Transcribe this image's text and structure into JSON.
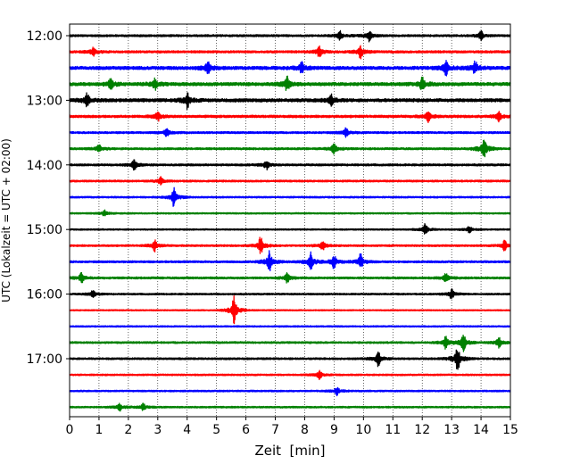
{
  "chart_data": {
    "type": "line",
    "title": "",
    "xlabel": "Zeit  [min]",
    "ylabel": "UTC (Lokalzeit = UTC + 02:00)",
    "xlim": [
      0,
      15
    ],
    "x_ticks": [
      "0",
      "1",
      "2",
      "3",
      "4",
      "5",
      "6",
      "7",
      "8",
      "9",
      "10",
      "11",
      "12",
      "13",
      "14",
      "15"
    ],
    "y_ticks": [
      "12:00",
      "13:00",
      "14:00",
      "15:00",
      "16:00",
      "17:00"
    ],
    "grid": "vertical dotted",
    "trace_interval_minutes": 15,
    "trace_colors_cycle": [
      "#000000",
      "#ff0000",
      "#0000ff",
      "#008000"
    ],
    "traces": [
      {
        "start": "12:00",
        "color": "#000000",
        "noise": 1.0,
        "events": [
          {
            "t": 9.2,
            "amp": 1.3
          },
          {
            "t": 10.2,
            "amp": 1.6
          },
          {
            "t": 14.0,
            "amp": 1.2
          }
        ]
      },
      {
        "start": "12:15",
        "color": "#ff0000",
        "noise": 1.1,
        "events": [
          {
            "t": 0.8,
            "amp": 1.4
          },
          {
            "t": 8.5,
            "amp": 1.6
          },
          {
            "t": 9.9,
            "amp": 1.8
          }
        ]
      },
      {
        "start": "12:30",
        "color": "#0000ff",
        "noise": 1.6,
        "events": [
          {
            "t": 4.7,
            "amp": 1.8
          },
          {
            "t": 7.9,
            "amp": 1.6
          },
          {
            "t": 12.8,
            "amp": 2.2
          },
          {
            "t": 13.8,
            "amp": 2.0
          }
        ]
      },
      {
        "start": "12:45",
        "color": "#008000",
        "noise": 1.6,
        "events": [
          {
            "t": 1.4,
            "amp": 1.6
          },
          {
            "t": 2.9,
            "amp": 1.6
          },
          {
            "t": 7.4,
            "amp": 2.0
          },
          {
            "t": 12.0,
            "amp": 2.0
          }
        ]
      },
      {
        "start": "13:00",
        "color": "#000000",
        "noise": 1.6,
        "events": [
          {
            "t": 0.6,
            "amp": 2.0
          },
          {
            "t": 4.0,
            "amp": 2.3
          },
          {
            "t": 8.9,
            "amp": 1.5
          }
        ]
      },
      {
        "start": "13:15",
        "color": "#ff0000",
        "noise": 1.2,
        "events": [
          {
            "t": 3.0,
            "amp": 1.4
          },
          {
            "t": 12.2,
            "amp": 1.6
          },
          {
            "t": 14.6,
            "amp": 1.4
          }
        ]
      },
      {
        "start": "13:30",
        "color": "#0000ff",
        "noise": 1.0,
        "events": [
          {
            "t": 3.3,
            "amp": 1.3
          },
          {
            "t": 9.4,
            "amp": 1.3
          }
        ]
      },
      {
        "start": "13:45",
        "color": "#008000",
        "noise": 1.0,
        "events": [
          {
            "t": 1.0,
            "amp": 1.3
          },
          {
            "t": 9.0,
            "amp": 1.8
          },
          {
            "t": 14.1,
            "amp": 3.8
          }
        ]
      },
      {
        "start": "14:00",
        "color": "#000000",
        "noise": 1.0,
        "events": [
          {
            "t": 2.2,
            "amp": 1.6
          },
          {
            "t": 6.7,
            "amp": 1.3
          }
        ]
      },
      {
        "start": "14:15",
        "color": "#ff0000",
        "noise": 0.9,
        "events": [
          {
            "t": 3.1,
            "amp": 1.1
          }
        ]
      },
      {
        "start": "14:30",
        "color": "#0000ff",
        "noise": 0.8,
        "events": [
          {
            "t": 3.55,
            "amp": 2.9
          }
        ]
      },
      {
        "start": "14:45",
        "color": "#008000",
        "noise": 0.7,
        "events": [
          {
            "t": 1.2,
            "amp": 1.0
          }
        ]
      },
      {
        "start": "15:00",
        "color": "#000000",
        "noise": 0.7,
        "events": [
          {
            "t": 12.1,
            "amp": 1.6
          },
          {
            "t": 13.6,
            "amp": 1.0
          }
        ]
      },
      {
        "start": "15:15",
        "color": "#ff0000",
        "noise": 0.9,
        "events": [
          {
            "t": 2.9,
            "amp": 1.6
          },
          {
            "t": 6.5,
            "amp": 2.6
          },
          {
            "t": 8.6,
            "amp": 1.5
          },
          {
            "t": 14.8,
            "amp": 1.6
          }
        ]
      },
      {
        "start": "15:30",
        "color": "#0000ff",
        "noise": 1.0,
        "events": [
          {
            "t": 6.8,
            "amp": 3.2
          },
          {
            "t": 8.2,
            "amp": 3.0
          },
          {
            "t": 9.0,
            "amp": 2.2
          },
          {
            "t": 9.9,
            "amp": 2.4
          }
        ]
      },
      {
        "start": "15:45",
        "color": "#008000",
        "noise": 1.0,
        "events": [
          {
            "t": 0.4,
            "amp": 1.6
          },
          {
            "t": 7.4,
            "amp": 1.4
          },
          {
            "t": 12.8,
            "amp": 1.3
          }
        ]
      },
      {
        "start": "16:00",
        "color": "#000000",
        "noise": 0.8,
        "events": [
          {
            "t": 0.8,
            "amp": 1.2
          },
          {
            "t": 13.0,
            "amp": 1.6
          }
        ]
      },
      {
        "start": "16:15",
        "color": "#ff0000",
        "noise": 0.6,
        "events": [
          {
            "t": 5.6,
            "amp": 4.4
          }
        ]
      },
      {
        "start": "16:30",
        "color": "#0000ff",
        "noise": 0.7,
        "events": []
      },
      {
        "start": "16:45",
        "color": "#008000",
        "noise": 0.9,
        "events": [
          {
            "t": 12.8,
            "amp": 2.0
          },
          {
            "t": 13.4,
            "amp": 2.6
          },
          {
            "t": 14.6,
            "amp": 1.6
          }
        ]
      },
      {
        "start": "17:00",
        "color": "#000000",
        "noise": 0.9,
        "events": [
          {
            "t": 10.5,
            "amp": 2.2
          },
          {
            "t": 13.2,
            "amp": 4.2
          }
        ]
      },
      {
        "start": "17:15",
        "color": "#ff0000",
        "noise": 0.8,
        "events": [
          {
            "t": 8.5,
            "amp": 1.3
          }
        ]
      },
      {
        "start": "17:30",
        "color": "#0000ff",
        "noise": 0.8,
        "events": [
          {
            "t": 9.1,
            "amp": 1.2
          }
        ]
      },
      {
        "start": "17:45",
        "color": "#008000",
        "noise": 0.8,
        "events": [
          {
            "t": 1.7,
            "amp": 1.2
          },
          {
            "t": 2.5,
            "amp": 1.2
          }
        ]
      }
    ]
  }
}
